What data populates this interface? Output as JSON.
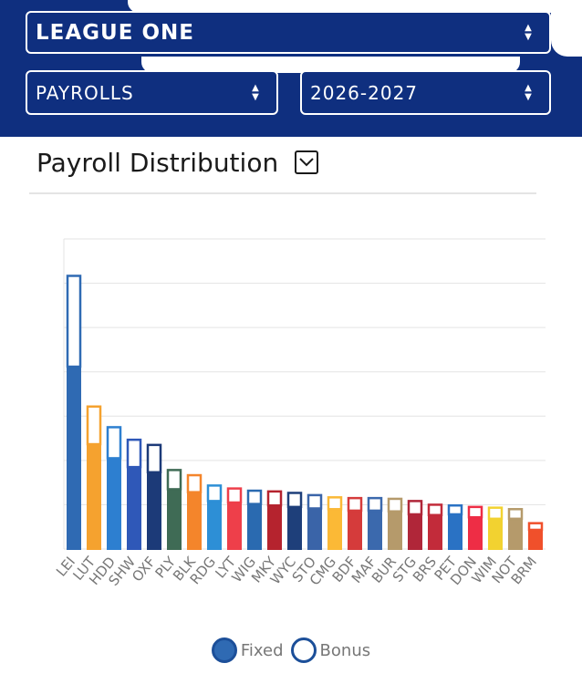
{
  "filters": {
    "league": "LEAGUE ONE",
    "metric": "PAYROLLS",
    "season": "2026-2027"
  },
  "chart_title": "Payroll Distribution",
  "icons": {
    "select_arrows": "up-down-caret-icon",
    "toggle": "chevron-down-icon"
  },
  "legend": {
    "fixed": "Fixed",
    "bonus": "Bonus"
  },
  "chart_data": {
    "type": "bar",
    "stacked": true,
    "title": "Payroll Distribution",
    "categories": [
      "LEI",
      "LUT",
      "HDD",
      "SHW",
      "OXF",
      "PLY",
      "BLK",
      "RDG",
      "LYT",
      "WIG",
      "MKY",
      "WYC",
      "STO",
      "CMG",
      "BDF",
      "MAF",
      "BUR",
      "STG",
      "BRS",
      "PET",
      "DON",
      "WIM",
      "NOT",
      "BRM"
    ],
    "colors": [
      "#2f6ab3",
      "#f5a22f",
      "#2d7fd0",
      "#2f58b8",
      "#1c3a78",
      "#3f6b55",
      "#f4852b",
      "#2d8fd6",
      "#ee3f4a",
      "#2a6ab0",
      "#b5232e",
      "#1e3f7a",
      "#3a64a8",
      "#fbb936",
      "#d53b3b",
      "#3b69ad",
      "#b59a6b",
      "#b02639",
      "#c22b3a",
      "#2a72c4",
      "#ee2d45",
      "#f2d230",
      "#b59a6b",
      "#f0502b"
    ],
    "series": [
      {
        "name": "Fixed",
        "values": [
          24.7,
          14.2,
          12.3,
          11.1,
          10.4,
          8.1,
          7.7,
          6.5,
          6.3,
          6.1,
          5.9,
          5.7,
          5.5,
          5.4,
          5.2,
          5.2,
          5.1,
          4.7,
          4.6,
          4.7,
          4.3,
          4.1,
          4.1,
          2.6
        ]
      },
      {
        "name": "Bonus",
        "values": [
          12.3,
          5.1,
          4.2,
          3.7,
          3.7,
          2.6,
          2.3,
          2.1,
          1.9,
          1.8,
          1.9,
          1.9,
          1.8,
          1.6,
          1.7,
          1.7,
          1.7,
          1.8,
          1.4,
          1.2,
          1.4,
          1.5,
          1.3,
          0.9
        ]
      }
    ],
    "ylim": [
      0,
      42
    ],
    "grid": true,
    "y_tick_labels": false,
    "legend_position": "bottom-center"
  }
}
